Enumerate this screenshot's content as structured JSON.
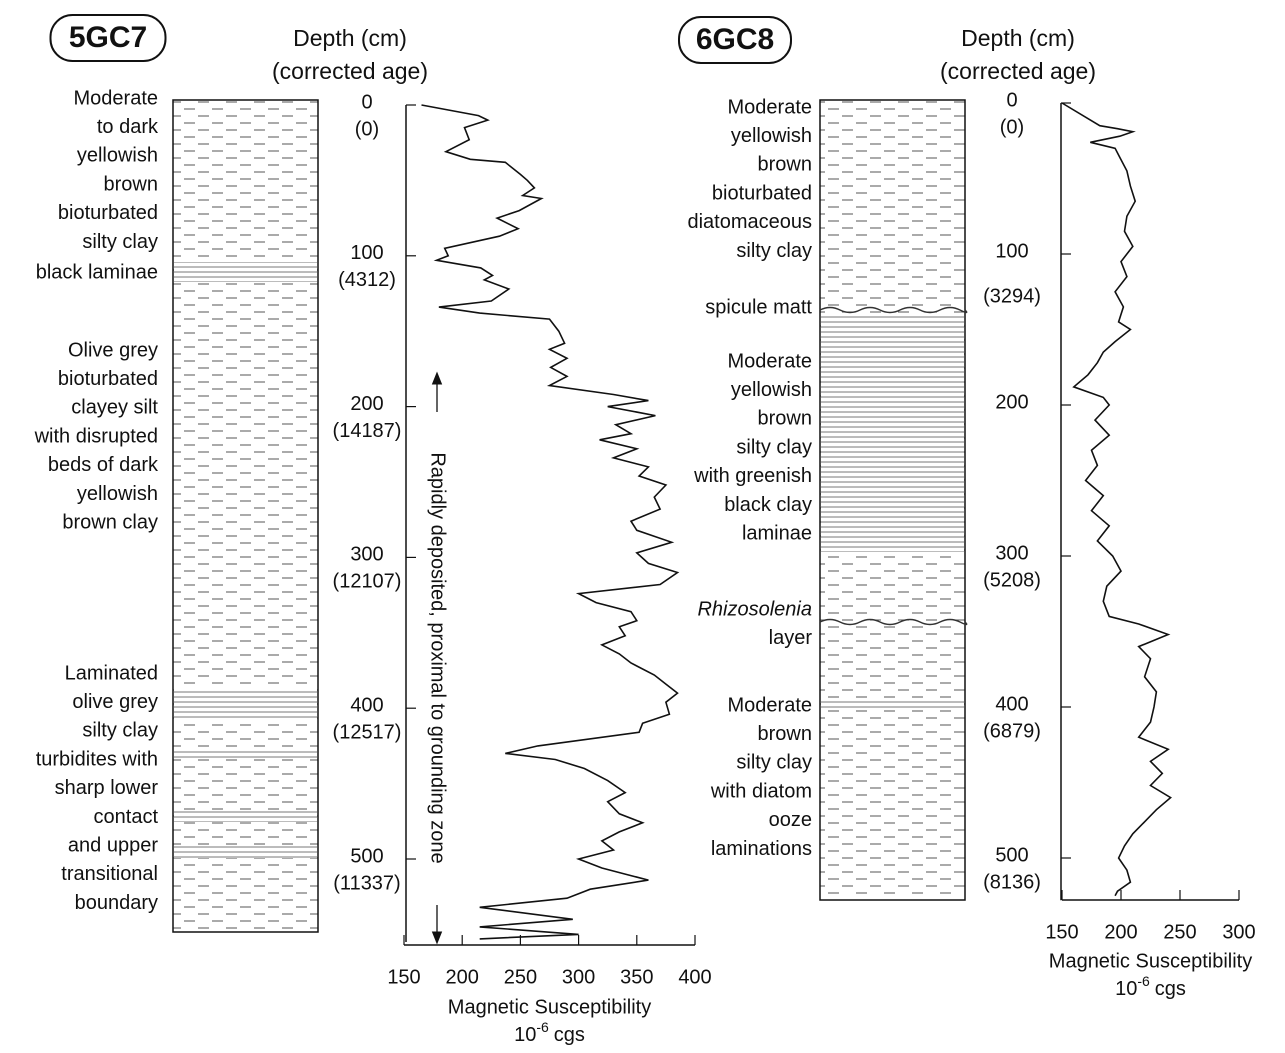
{
  "chart_data": [
    {
      "type": "line",
      "title": "5GC7",
      "y_label": "Depth (cm)",
      "y_label_2": "(corrected age)",
      "x_label": "Magnetic Susceptibility",
      "x_unit": {
        "base": "10",
        "exponent": "-6",
        "unit": "cgs"
      },
      "annotation": "Rapidly deposited, proximal to grounding zone",
      "lithology": [
        [
          "Moderate",
          "to dark",
          "yellowish",
          "brown",
          "bioturbated",
          "silty clay"
        ],
        [
          "black laminae"
        ],
        [
          "Olive grey",
          "bioturbated",
          "clayey silt",
          "with disrupted",
          "beds of dark",
          "yellowish",
          "brown clay"
        ],
        [
          "Laminated",
          "olive grey",
          "silty clay",
          "turbidites with",
          "sharp lower",
          "contact",
          "and upper",
          "transitional",
          "boundary"
        ]
      ],
      "ylim": [
        0,
        555
      ],
      "yticks": [
        0,
        100,
        200,
        300,
        400,
        500
      ],
      "age_labels": [
        {
          "depth": 0,
          "label": "(0)"
        },
        {
          "depth": 100,
          "label": "(4312)"
        },
        {
          "depth": 200,
          "label": "(14187)"
        },
        {
          "depth": 300,
          "label": "(12107)"
        },
        {
          "depth": 400,
          "label": "(12517)"
        },
        {
          "depth": 500,
          "label": "(11337)"
        }
      ],
      "xlim": [
        150,
        400
      ],
      "xticks": [
        150,
        200,
        250,
        300,
        350,
        400
      ],
      "depth": [
        0,
        7,
        10,
        15,
        23,
        31,
        36,
        38,
        46,
        50,
        55,
        60,
        62,
        70,
        75,
        82,
        87,
        95,
        100,
        103,
        108,
        113,
        116,
        122,
        130,
        134,
        138,
        142,
        150,
        158,
        162,
        168,
        174,
        180,
        186,
        192,
        196,
        200,
        206,
        212,
        218,
        222,
        228,
        234,
        240,
        246,
        252,
        260,
        268,
        276,
        282,
        290,
        297,
        304,
        310,
        318,
        324,
        330,
        336,
        342,
        346,
        352,
        358,
        364,
        370,
        378,
        384,
        390,
        396,
        404,
        410,
        416,
        425,
        430,
        434,
        440,
        448,
        456,
        462,
        470,
        476,
        482,
        488,
        494,
        500,
        506,
        510,
        514,
        520,
        526,
        532,
        540,
        545,
        550,
        553
      ],
      "values": [
        165,
        214,
        222,
        202,
        206,
        186,
        207,
        237,
        250,
        256,
        262,
        252,
        268,
        249,
        230,
        248,
        232,
        185,
        188,
        178,
        216,
        226,
        219,
        240,
        225,
        180,
        215,
        275,
        283,
        288,
        275,
        290,
        276,
        290,
        275,
        330,
        360,
        325,
        366,
        332,
        345,
        318,
        350,
        330,
        360,
        352,
        375,
        365,
        370,
        345,
        350,
        380,
        350,
        360,
        385,
        370,
        300,
        315,
        345,
        350,
        335,
        340,
        320,
        335,
        345,
        365,
        375,
        385,
        375,
        378,
        355,
        352,
        265,
        237,
        280,
        305,
        325,
        340,
        325,
        335,
        355,
        335,
        320,
        330,
        300,
        320,
        340,
        360,
        310,
        290,
        215,
        295,
        215,
        300,
        215
      ]
    },
    {
      "type": "line",
      "title": "6GC8",
      "y_label": "Depth (cm)",
      "y_label_2": "(corrected age)",
      "x_label": "Magnetic Susceptibility",
      "x_unit": {
        "base": "10",
        "exponent": "-6",
        "unit": "cgs"
      },
      "lithology": [
        [
          "Moderate",
          "yellowish",
          "brown",
          "bioturbated",
          "diatomaceous",
          "silty clay"
        ],
        [
          "spicule matt"
        ],
        [
          "Moderate",
          "yellowish",
          "brown",
          "silty clay",
          "with greenish",
          "black clay",
          "laminae"
        ],
        [
          "Rhizosolenia",
          "layer"
        ],
        [
          "Moderate",
          "brown",
          "silty clay",
          "with diatom",
          "ooze",
          "laminations"
        ]
      ],
      "ylim": [
        0,
        528
      ],
      "yticks": [
        0,
        100,
        200,
        300,
        400,
        500
      ],
      "age_labels": [
        {
          "depth": 0,
          "label": "(0)"
        },
        {
          "depth": 112,
          "label": "(3294)"
        },
        {
          "depth": 300,
          "label": "(5208)"
        },
        {
          "depth": 400,
          "label": "(6879)"
        },
        {
          "depth": 500,
          "label": "(8136)"
        }
      ],
      "xlim": [
        150,
        300
      ],
      "xticks": [
        150,
        200,
        250,
        300
      ],
      "depth": [
        0,
        15,
        17,
        19,
        22,
        26,
        30,
        36,
        45,
        55,
        65,
        75,
        85,
        95,
        105,
        115,
        125,
        135,
        145,
        150,
        158,
        165,
        172,
        180,
        188,
        195,
        200,
        210,
        220,
        230,
        240,
        250,
        260,
        270,
        280,
        290,
        300,
        310,
        320,
        330,
        340,
        345,
        352,
        360,
        368,
        380,
        390,
        400,
        410,
        420,
        428,
        436,
        444,
        452,
        460,
        468,
        476,
        484,
        492,
        500,
        508,
        516,
        522,
        525
      ],
      "values": [
        150,
        182,
        197,
        210,
        199,
        174,
        195,
        199,
        205,
        208,
        212,
        205,
        203,
        210,
        200,
        205,
        195,
        202,
        198,
        208,
        195,
        185,
        180,
        172,
        160,
        185,
        190,
        178,
        190,
        175,
        180,
        170,
        185,
        175,
        190,
        180,
        193,
        200,
        188,
        185,
        190,
        215,
        240,
        215,
        225,
        220,
        230,
        228,
        225,
        215,
        240,
        225,
        235,
        225,
        242,
        230,
        220,
        210,
        203,
        198,
        205,
        208,
        197,
        195
      ]
    }
  ]
}
